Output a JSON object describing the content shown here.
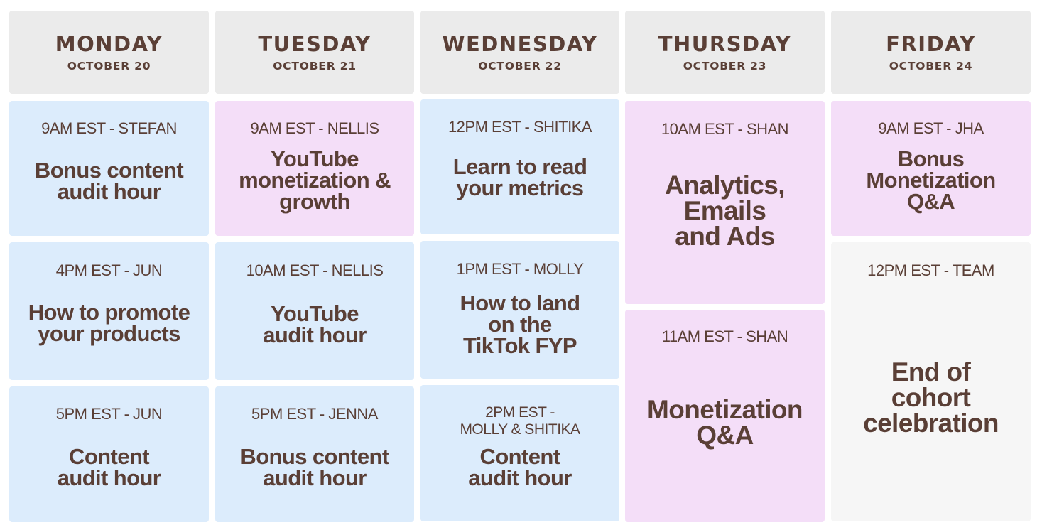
{
  "days": [
    {
      "name": "MONDAY",
      "date": "OCTOBER 20"
    },
    {
      "name": "TUESDAY",
      "date": "OCTOBER 21"
    },
    {
      "name": "WEDNESDAY",
      "date": "OCTOBER 22"
    },
    {
      "name": "THURSDAY",
      "date": "OCTOBER 23"
    },
    {
      "name": "FRIDAY",
      "date": "OCTOBER 24"
    }
  ],
  "monday": [
    {
      "time": "9AM EST - STEFAN",
      "title": "Bonus content\naudit hour"
    },
    {
      "time": "4PM EST - JUN",
      "title": "How to promote\nyour products"
    },
    {
      "time": "5PM EST - JUN",
      "title": "Content\naudit hour"
    }
  ],
  "tuesday": [
    {
      "time": "9AM EST - NELLIS",
      "title": "YouTube\nmonetization &\ngrowth"
    },
    {
      "time": "10AM EST - NELLIS",
      "title": "YouTube\naudit hour"
    },
    {
      "time": "5PM EST - JENNA",
      "title": "Bonus content\naudit hour"
    }
  ],
  "wednesday": [
    {
      "time": "12PM EST - SHITIKA",
      "title": "Learn to read\nyour metrics"
    },
    {
      "time": "1PM EST - MOLLY",
      "title": "How to land\non the\nTikTok FYP"
    },
    {
      "time": "2PM EST -\nMOLLY & SHITIKA",
      "title": "Content\naudit hour"
    }
  ],
  "thursday": [
    {
      "time": "10AM EST - SHAN",
      "title": "Analytics,\nEmails\nand Ads"
    },
    {
      "time": "11AM EST - SHAN",
      "title": "Monetization\nQ&A"
    }
  ],
  "friday": [
    {
      "time": "9AM EST - JHA",
      "title": "Bonus\nMonetization\nQ&A"
    },
    {
      "time": "12PM EST - TEAM",
      "title": "End of\ncohort\ncelebration"
    }
  ]
}
